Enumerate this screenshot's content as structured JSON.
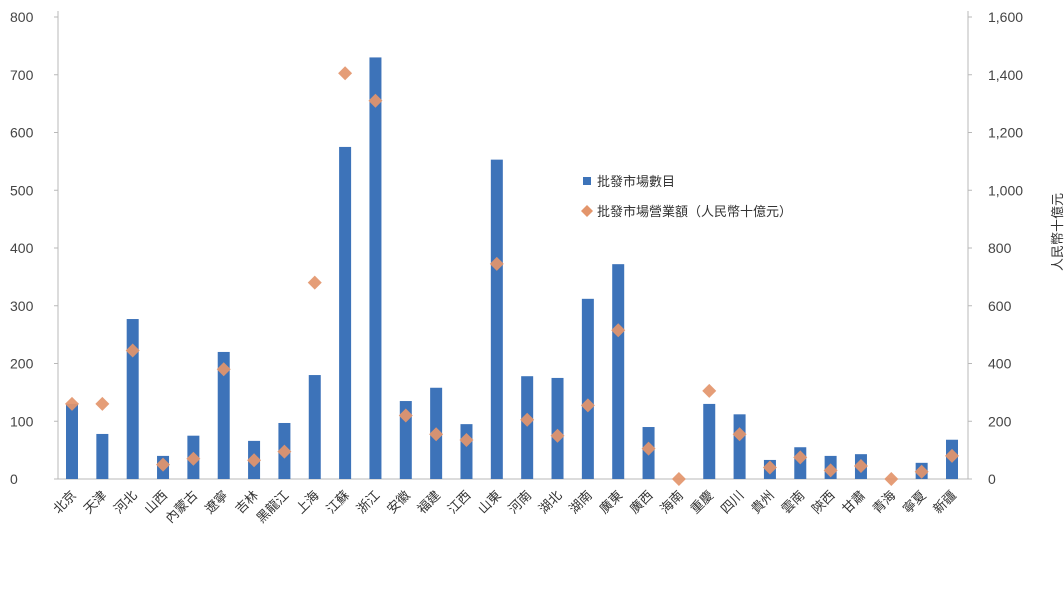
{
  "chart_data": {
    "type": "bar",
    "categories": [
      "北京",
      "天津",
      "河北",
      "山西",
      "內蒙古",
      "遼寧",
      "吉林",
      "黑龍江",
      "上海",
      "江蘇",
      "浙江",
      "安徽",
      "福建",
      "江西",
      "山東",
      "河南",
      "湖北",
      "湖南",
      "廣東",
      "廣西",
      "海南",
      "重慶",
      "四川",
      "貴州",
      "雲南",
      "陝西",
      "甘肅",
      "青海",
      "寧夏",
      "新疆"
    ],
    "series": [
      {
        "name": "批發市場數目",
        "type": "bar",
        "axis": "left",
        "color": "#3d73b9",
        "values": [
          130,
          78,
          277,
          40,
          75,
          220,
          66,
          97,
          180,
          575,
          730,
          135,
          158,
          95,
          553,
          178,
          175,
          312,
          372,
          90,
          0,
          130,
          112,
          33,
          55,
          40,
          43,
          0,
          28,
          68
        ]
      },
      {
        "name": "批發市場營業額（人民幣十億元）",
        "type": "marker",
        "axis": "right",
        "color": "#e3956b",
        "values": [
          260,
          260,
          445,
          50,
          70,
          380,
          65,
          95,
          680,
          1405,
          1310,
          220,
          155,
          135,
          745,
          205,
          150,
          255,
          515,
          105,
          0,
          305,
          155,
          40,
          75,
          30,
          45,
          0,
          25,
          80
        ]
      }
    ],
    "y_left": {
      "min": 0,
      "max": 800,
      "step": 100,
      "ticks": [
        "0",
        "100",
        "200",
        "300",
        "400",
        "500",
        "600",
        "700",
        "800"
      ]
    },
    "y_right": {
      "min": 0,
      "max": 1600,
      "step": 200,
      "ticks": [
        "0",
        "200",
        "400",
        "600",
        "800",
        "1,000",
        "1,200",
        "1,400",
        "1,600"
      ],
      "label": "人民幣十億元"
    },
    "legend": {
      "placement": "center-right"
    },
    "grid": false
  }
}
